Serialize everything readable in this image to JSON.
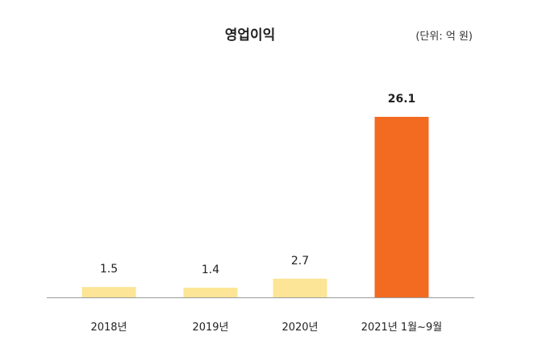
{
  "chart_data": {
    "type": "bar",
    "title": "영업이익",
    "unit_label": "(단위: 억 원)",
    "categories": [
      "2018년",
      "2019년",
      "2020년",
      "2021년 1월~9월"
    ],
    "values": [
      1.5,
      1.4,
      2.7,
      26.1
    ],
    "value_labels": [
      "1.5",
      "1.4",
      "2.7",
      "26.1"
    ],
    "ylim": [
      0,
      30
    ],
    "grid": false,
    "legend": "none",
    "colors": {
      "normal_bar": "#FCE596",
      "highlight_bar": "#F26B21",
      "highlight_label": "#F26B21",
      "default_label": "#222222",
      "baseline": "#9a9a9a"
    },
    "highlight_index": 3
  }
}
